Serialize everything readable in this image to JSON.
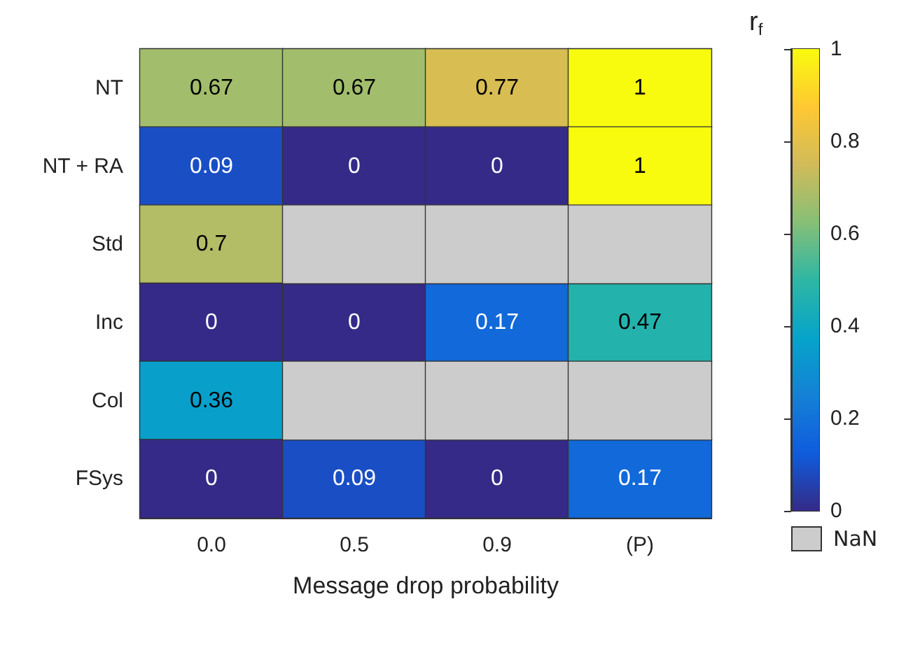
{
  "chart_data": {
    "type": "heatmap",
    "xlabel": "Message drop probability",
    "clabel": "r$_{f}$",
    "categories": [
      "0.0",
      "0.5",
      "0.9",
      "(P)"
    ],
    "y_categories": [
      "NT",
      "NT + RA",
      "Std",
      "Inc",
      "Col",
      "FSys"
    ],
    "cells": [
      [
        0.67,
        0.67,
        0.77,
        1
      ],
      [
        0.09,
        0,
        0,
        1
      ],
      [
        0.7,
        null,
        null,
        null
      ],
      [
        0,
        0,
        0.17,
        0.47
      ],
      [
        0.36,
        null,
        null,
        null
      ],
      [
        0,
        0.09,
        0,
        0.17
      ]
    ],
    "clim": [
      0,
      1
    ],
    "cticks": [
      0,
      0.2,
      0.4,
      0.6,
      0.8,
      1
    ],
    "data_labels": true,
    "annotations": [
      "NaN"
    ]
  }
}
